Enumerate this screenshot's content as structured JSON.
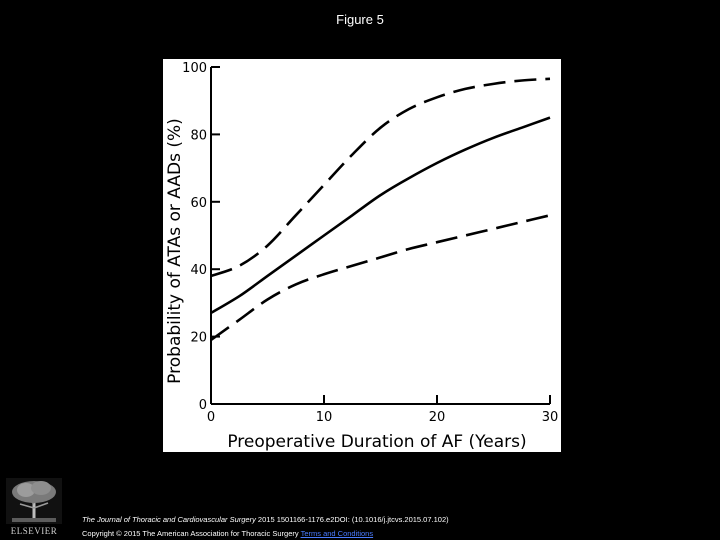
{
  "slide": {
    "title": "Figure 5",
    "logo_text": "ELSEVIER",
    "citation_journal": "The Journal of Thoracic and Cardiovascular Surgery",
    "citation_rest": " 2015 1501166-1176.e2DOI: (10.1016/j.jtcvs.2015.07.102)",
    "copyright": "Copyright © 2015 The American Association for Thoracic Surgery ",
    "terms_link": "Terms and Conditions"
  },
  "colors": {
    "background": "#000000",
    "panel": "#ffffff",
    "ink": "#000000",
    "link": "#4a7cff"
  },
  "chart_data": {
    "type": "line",
    "title": "",
    "xlabel": "Preoperative Duration of AF (Years)",
    "ylabel": "Probability of ATAs or AADs (%)",
    "xlim": [
      0,
      30
    ],
    "ylim": [
      0,
      100
    ],
    "xticks": [
      0,
      10,
      20,
      30
    ],
    "yticks": [
      0,
      20,
      40,
      60,
      80,
      100
    ],
    "grid": false,
    "x": [
      0,
      2.5,
      5,
      7.5,
      10,
      12.5,
      15,
      17.5,
      20,
      22.5,
      25,
      27.5,
      30
    ],
    "series": [
      {
        "style": "dashed",
        "role": "upper",
        "values": [
          38,
          41,
          47,
          56,
          65,
          74,
          82,
          87.5,
          91,
          93.5,
          95,
          96,
          96.5
        ]
      },
      {
        "style": "solid",
        "role": "estimate",
        "values": [
          27,
          32,
          38,
          44,
          50,
          56,
          62,
          67,
          71.5,
          75.5,
          79,
          82,
          85
        ]
      },
      {
        "style": "dashed",
        "role": "lower",
        "values": [
          19,
          25,
          31,
          35.5,
          38.5,
          41,
          43.5,
          46,
          48,
          50,
          52,
          54,
          56
        ]
      }
    ]
  }
}
